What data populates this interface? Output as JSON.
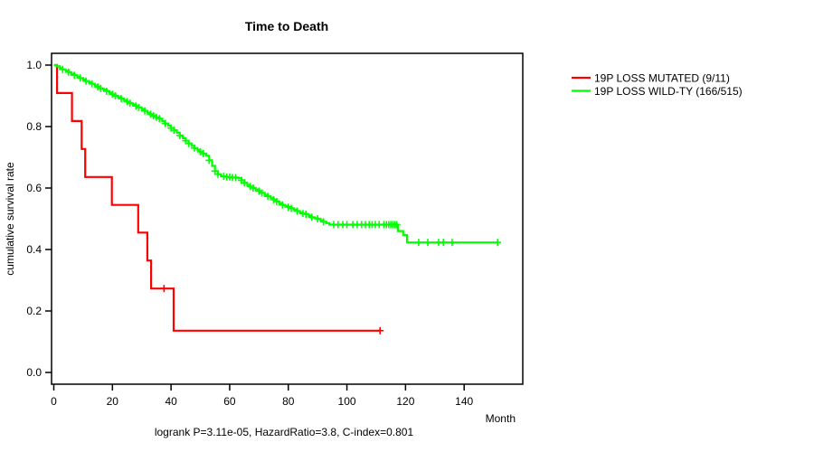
{
  "title": "Time to Death",
  "axes": {
    "ylabel": "cumulative survival rate",
    "xlabel": "Month",
    "x_tick_labels": [
      "0",
      "20",
      "40",
      "60",
      "80",
      "100",
      "120",
      "140"
    ],
    "x_tick_values": [
      0,
      20,
      40,
      60,
      80,
      100,
      120,
      140
    ],
    "y_tick_labels": [
      "0.0",
      "0.2",
      "0.4",
      "0.6",
      "0.8",
      "1.0"
    ],
    "y_tick_values": [
      0.0,
      0.2,
      0.4,
      0.6,
      0.8,
      1.0
    ]
  },
  "footer": "logrank P=3.11e-05, HazardRatio=3.8, C-index=0.801",
  "legend": {
    "entries": [
      {
        "label": "19P LOSS MUTATED (9/11)",
        "color": "#ff0000"
      },
      {
        "label": "19P LOSS WILD-TY (166/515)",
        "color": "#00ff00"
      }
    ]
  },
  "colors": {
    "mutated": "#ff0000",
    "wildtype": "#00ff00",
    "axis": "#000000",
    "background": "#ffffff"
  },
  "chart_data": {
    "type": "line",
    "subtype": "kaplan-meier-step-curves",
    "title": "Time to Death",
    "xlabel": "Month",
    "ylabel": "cumulative survival rate",
    "xlim": [
      0,
      160
    ],
    "ylim": [
      0.0,
      1.0
    ],
    "grid": false,
    "legend_position": "right-outside",
    "series": [
      {
        "name": "19P LOSS MUTATED (9/11)",
        "color": "#ff0000",
        "n_total": 11,
        "n_events": 9,
        "steps": [
          [
            0,
            1.0
          ],
          [
            1.1,
            0.909
          ],
          [
            6.2,
            0.818
          ],
          [
            9.5,
            0.727
          ],
          [
            10.7,
            0.636
          ],
          [
            19.8,
            0.545
          ],
          [
            28.8,
            0.455
          ],
          [
            31.9,
            0.364
          ],
          [
            33.2,
            0.273
          ],
          [
            40.9,
            0.136
          ]
        ],
        "end_month": 111.3,
        "censor_months": [
          37.6,
          111.3
        ]
      },
      {
        "name": "19P LOSS WILD-TY (166/515)",
        "color": "#00ff00",
        "n_total": 515,
        "n_events": 166,
        "steps": [
          [
            0,
            1.0
          ],
          [
            1,
            0.996
          ],
          [
            2,
            0.99
          ],
          [
            3,
            0.986
          ],
          [
            4,
            0.982
          ],
          [
            5,
            0.977
          ],
          [
            6,
            0.972
          ],
          [
            7,
            0.967
          ],
          [
            8,
            0.963
          ],
          [
            9,
            0.958
          ],
          [
            10,
            0.953
          ],
          [
            11,
            0.948
          ],
          [
            12,
            0.944
          ],
          [
            13,
            0.939
          ],
          [
            14,
            0.934
          ],
          [
            15,
            0.929
          ],
          [
            16,
            0.924
          ],
          [
            17,
            0.92
          ],
          [
            18,
            0.915
          ],
          [
            19,
            0.91
          ],
          [
            20,
            0.905
          ],
          [
            21,
            0.9
          ],
          [
            22,
            0.896
          ],
          [
            23,
            0.891
          ],
          [
            24,
            0.886
          ],
          [
            25,
            0.881
          ],
          [
            26,
            0.876
          ],
          [
            27,
            0.872
          ],
          [
            28,
            0.867
          ],
          [
            29,
            0.862
          ],
          [
            30,
            0.857
          ],
          [
            31,
            0.851
          ],
          [
            32,
            0.845
          ],
          [
            33,
            0.84
          ],
          [
            34,
            0.835
          ],
          [
            35,
            0.83
          ],
          [
            36,
            0.826
          ],
          [
            37,
            0.818
          ],
          [
            38,
            0.81
          ],
          [
            39,
            0.803
          ],
          [
            40,
            0.795
          ],
          [
            41,
            0.788
          ],
          [
            42,
            0.78
          ],
          [
            43,
            0.771
          ],
          [
            44,
            0.762
          ],
          [
            45,
            0.754
          ],
          [
            46,
            0.745
          ],
          [
            47,
            0.737
          ],
          [
            48,
            0.73
          ],
          [
            49,
            0.724
          ],
          [
            50,
            0.718
          ],
          [
            51,
            0.712
          ],
          [
            52,
            0.705
          ],
          [
            53,
            0.69
          ],
          [
            54,
            0.672
          ],
          [
            55,
            0.655
          ],
          [
            56,
            0.645
          ],
          [
            57,
            0.638
          ],
          [
            59,
            0.636
          ],
          [
            61,
            0.634
          ],
          [
            63,
            0.632
          ],
          [
            64,
            0.625
          ],
          [
            65,
            0.617
          ],
          [
            66,
            0.61
          ],
          [
            67,
            0.605
          ],
          [
            68,
            0.6
          ],
          [
            69,
            0.595
          ],
          [
            70,
            0.59
          ],
          [
            71,
            0.584
          ],
          [
            72,
            0.578
          ],
          [
            73,
            0.573
          ],
          [
            74,
            0.568
          ],
          [
            75,
            0.562
          ],
          [
            76,
            0.556
          ],
          [
            77,
            0.55
          ],
          [
            78,
            0.545
          ],
          [
            79,
            0.541
          ],
          [
            80,
            0.538
          ],
          [
            81,
            0.534
          ],
          [
            82,
            0.53
          ],
          [
            83,
            0.525
          ],
          [
            84,
            0.52
          ],
          [
            85,
            0.517
          ],
          [
            86,
            0.515
          ],
          [
            87,
            0.51
          ],
          [
            88,
            0.505
          ],
          [
            89,
            0.502
          ],
          [
            90,
            0.5
          ],
          [
            91,
            0.495
          ],
          [
            92,
            0.49
          ],
          [
            93,
            0.486
          ],
          [
            94,
            0.481
          ],
          [
            117.4,
            0.46
          ],
          [
            119.2,
            0.447
          ],
          [
            120.5,
            0.423
          ]
        ],
        "end_month": 151.4,
        "censor_months": [
          3,
          5,
          7,
          9,
          11,
          13,
          15,
          16,
          18,
          20,
          21,
          23,
          25,
          26,
          28,
          29,
          31,
          33,
          34,
          35,
          36,
          38,
          40,
          41,
          43,
          45,
          46,
          48,
          50,
          51,
          53,
          55,
          56,
          58,
          59,
          60,
          61,
          62,
          64,
          65,
          67,
          68,
          70,
          71,
          73,
          75,
          76,
          78,
          80,
          81,
          83,
          85,
          86,
          88,
          90,
          92,
          95.5,
          97,
          98.6,
          100,
          102,
          103.5,
          105,
          106.3,
          107.6,
          108.6,
          109.7,
          111,
          112.6,
          113.5,
          114.3,
          115,
          115.7,
          116.4,
          117,
          124.5,
          127.6,
          131.3,
          132.9,
          135.9,
          151.4
        ]
      }
    ]
  }
}
